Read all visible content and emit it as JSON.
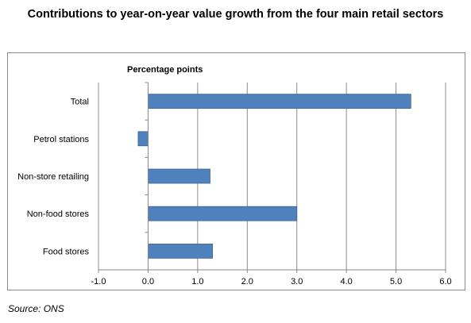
{
  "title": "Contributions to year-on-year value growth from the four main retail sectors",
  "source": "Source: ONS",
  "chart_data": {
    "type": "bar",
    "orientation": "horizontal",
    "title": "Contributions to year-on-year value growth from the four main retail sectors",
    "ylabel": "Percentage points",
    "xlabel": "",
    "categories": [
      "Total",
      "Petrol stations",
      "Non-store retailing",
      "Non-food stores",
      "Food stores"
    ],
    "values": [
      5.3,
      -0.2,
      1.25,
      3.0,
      1.3
    ],
    "xlim": [
      -1.0,
      6.0
    ],
    "xticks": [
      "-1.0",
      "0.0",
      "1.0",
      "2.0",
      "3.0",
      "4.0",
      "5.0",
      "6.0"
    ],
    "grid": "vertical",
    "legend": "none",
    "bar_color": "#4f81bd",
    "bar_border_color": "#3c6594",
    "grid_color": "#8c8c8c"
  }
}
